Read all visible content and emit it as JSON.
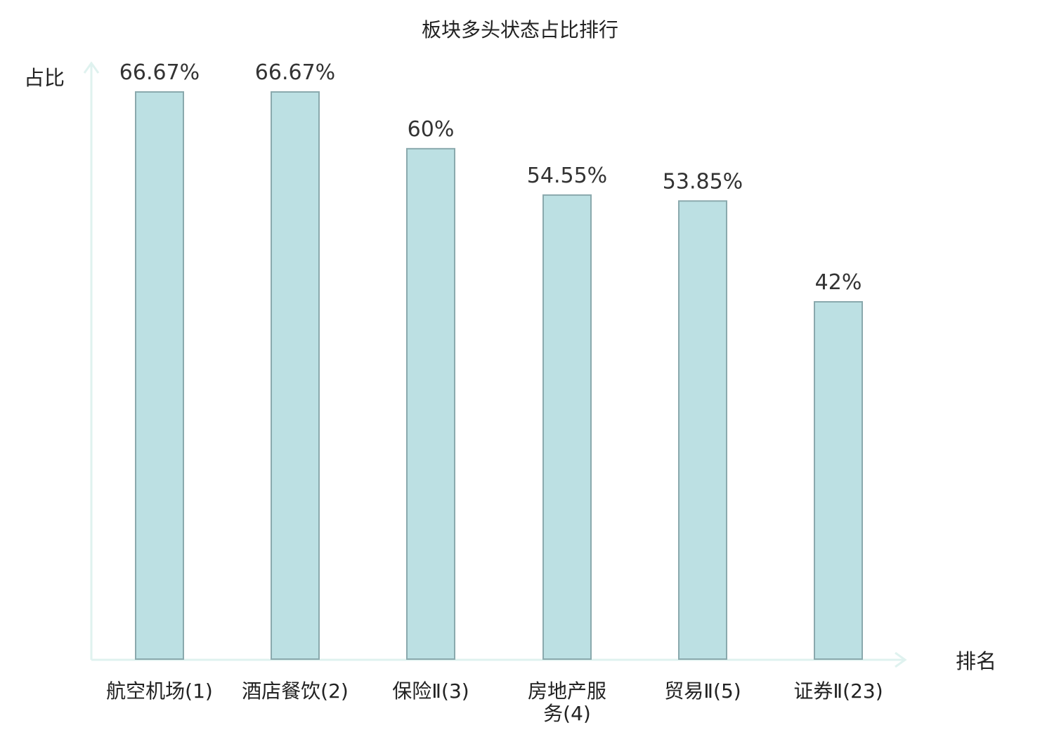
{
  "chart_data": {
    "type": "bar",
    "title": "板块多头状态占比排行",
    "ylabel": "占比",
    "xlabel": "排名",
    "categories": [
      "航空机场(1)",
      "酒店餐饮(2)",
      "保险Ⅱ(3)",
      "房地产服务(4)",
      "贸易Ⅱ(5)",
      "证券Ⅱ(23)"
    ],
    "values": [
      66.67,
      66.67,
      60,
      54.55,
      53.85,
      42
    ],
    "value_labels": [
      "66.67%",
      "66.67%",
      "60%",
      "54.55%",
      "53.85%",
      "42%"
    ],
    "highlight_category": "证券Ⅱ(23)",
    "ylim": [
      0,
      70
    ],
    "grid": false,
    "colors": {
      "bar_fill": "#bce0e3",
      "bar_stroke": "#8aa9ad",
      "axis": "#dff2ef",
      "highlight_label": "#e8191c",
      "text": "#222222"
    }
  }
}
